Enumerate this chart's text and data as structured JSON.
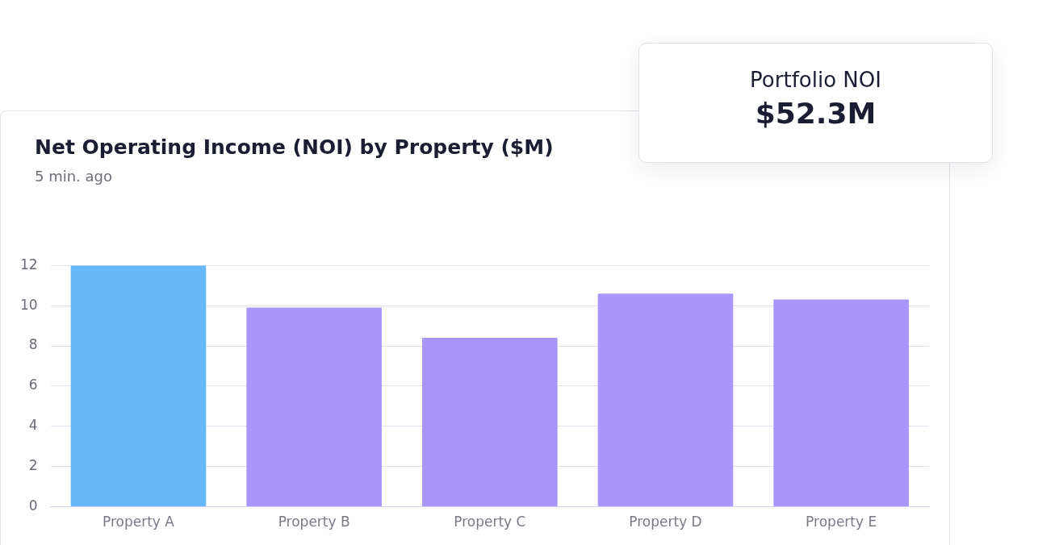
{
  "chart_data": {
    "type": "bar",
    "title": "Net Operating Income (NOI) by Property ($M)",
    "subtitle": "5 min. ago",
    "categories": [
      "Property A",
      "Property B",
      "Property C",
      "Property D",
      "Property E"
    ],
    "values": [
      12.0,
      9.9,
      8.4,
      10.6,
      10.3
    ],
    "colors": [
      "#66b8f9",
      "#a995fb",
      "#a995fb",
      "#a995fb",
      "#a995fb"
    ],
    "ylim": [
      0,
      12
    ],
    "yticks": [
      0,
      2,
      4,
      6,
      8,
      10,
      12
    ],
    "grid": "y",
    "annotations": [
      "Portfolio NOI",
      "$52.3M"
    ]
  }
}
